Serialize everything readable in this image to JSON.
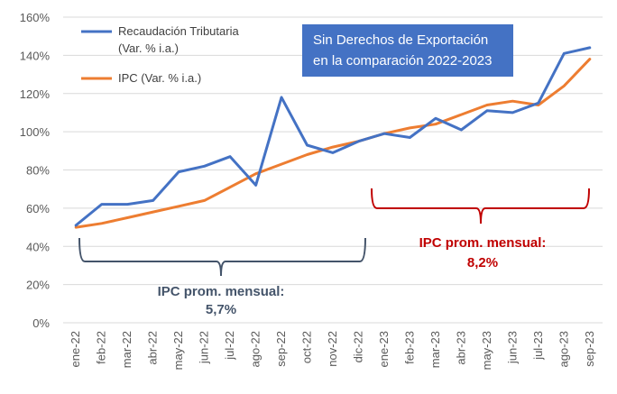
{
  "chart_data": {
    "type": "line",
    "categories": [
      "ene-22",
      "feb-22",
      "mar-22",
      "abr-22",
      "may-22",
      "jun-22",
      "jul-22",
      "ago-22",
      "sep-22",
      "oct-22",
      "nov-22",
      "dic-22",
      "ene-23",
      "feb-23",
      "mar-23",
      "abr-23",
      "may-23",
      "jun-23",
      "jul-23",
      "ago-23",
      "sep-23"
    ],
    "series": [
      {
        "name_line1": "Recaudación Tributaria",
        "name_line2": "(Var. % i.a.)",
        "color": "#4472C4",
        "values": [
          51,
          62,
          62,
          64,
          79,
          82,
          87,
          72,
          118,
          93,
          89,
          95,
          99,
          97,
          107,
          101,
          111,
          110,
          115,
          141,
          144
        ]
      },
      {
        "name_line1": "IPC (Var. % i.a.)",
        "color": "#ED7D31",
        "values": [
          50,
          52,
          55,
          58,
          61,
          64,
          71,
          78,
          83,
          88,
          92,
          95,
          99,
          102,
          104,
          109,
          114,
          116,
          114,
          124,
          138
        ]
      }
    ],
    "y_ticks": [
      "0%",
      "20%",
      "40%",
      "60%",
      "80%",
      "100%",
      "120%",
      "140%",
      "160%"
    ],
    "ylim": [
      0,
      160
    ],
    "grid": true,
    "annotation_box": {
      "line1": "Sin Derechos de Exportación",
      "line2": "en la comparación 2022-2023",
      "fill": "#4472C4",
      "text_color": "#FFFFFF"
    },
    "brackets": [
      {
        "from": "ene-22",
        "to": "dic-22",
        "label_line1": "IPC prom. mensual:",
        "label_line2": "5,7%",
        "color": "#44546A"
      },
      {
        "from": "ene-23",
        "to": "sep-23",
        "label_line1": "IPC prom. mensual:",
        "label_line2": "8,2%",
        "color": "#C00000"
      }
    ],
    "gridline_color": "#D9D9D9",
    "axis_text_color": "#595959"
  }
}
